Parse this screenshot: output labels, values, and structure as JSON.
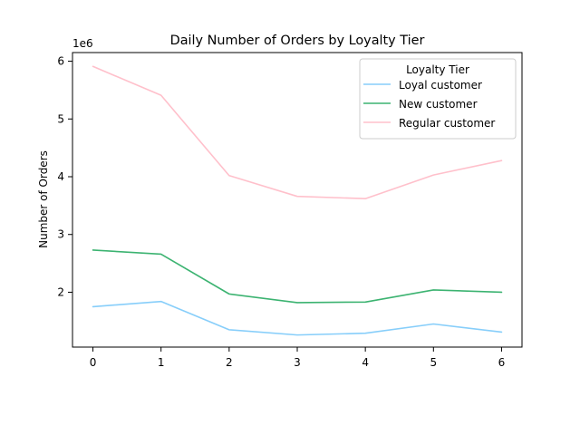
{
  "chart_data": {
    "type": "line",
    "title": "Daily Number of Orders by Loyalty Tier",
    "xlabel": "",
    "ylabel": "Number of Orders",
    "y_scale_label": "1e6",
    "x": [
      0,
      1,
      2,
      3,
      4,
      5,
      6
    ],
    "xticks": [
      "0",
      "1",
      "2",
      "3",
      "4",
      "5",
      "6"
    ],
    "yticks": [
      "2",
      "3",
      "4",
      "5",
      "6"
    ],
    "xlim": [
      -0.3,
      6.3
    ],
    "ylim": [
      1050000,
      6150000
    ],
    "grid": false,
    "legend": {
      "title": "Loyalty Tier",
      "placement": "upper right"
    },
    "series": [
      {
        "name": "Loyal customer",
        "color": "#87CEFA",
        "values": [
          1750000,
          1840000,
          1350000,
          1260000,
          1290000,
          1450000,
          1310000
        ]
      },
      {
        "name": "New customer",
        "color": "#3CB371",
        "values": [
          2730000,
          2660000,
          1970000,
          1820000,
          1830000,
          2040000,
          2000000
        ]
      },
      {
        "name": "Regular customer",
        "color": "#FFC0CB",
        "values": [
          5910000,
          5410000,
          4020000,
          3660000,
          3620000,
          4030000,
          4280000
        ]
      }
    ]
  }
}
